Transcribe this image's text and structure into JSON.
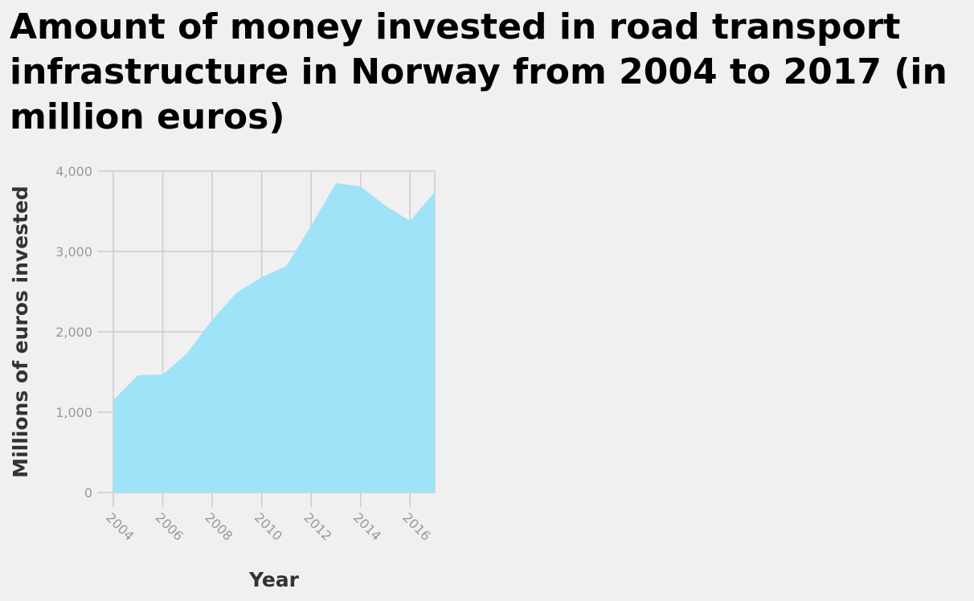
{
  "chart_data": {
    "type": "area",
    "title": "Amount of money invested in road transport infrastructure in Norway from 2004 to 2017 (in million euros)",
    "xlabel": "Year",
    "ylabel": "Millions of euros invested",
    "x": [
      2004,
      2005,
      2006,
      2007,
      2008,
      2009,
      2010,
      2011,
      2012,
      2013,
      2014,
      2015,
      2016,
      2017
    ],
    "values": [
      1150,
      1460,
      1470,
      1740,
      2150,
      2490,
      2680,
      2820,
      3320,
      3850,
      3810,
      3570,
      3380,
      3740
    ],
    "xlim": [
      2004,
      2017
    ],
    "ylim": [
      0,
      4000
    ],
    "x_ticks": [
      2004,
      2006,
      2008,
      2010,
      2012,
      2014,
      2016
    ],
    "y_ticks": [
      0,
      1000,
      2000,
      3000,
      4000
    ],
    "x_tick_labels": [
      "2004",
      "2006",
      "2008",
      "2010",
      "2012",
      "2014",
      "2016"
    ],
    "y_tick_labels": [
      "0",
      "1,000",
      "2,000",
      "3,000",
      "4,000"
    ],
    "fill_color": "#9fe3f8",
    "grid_color": "#cccccc",
    "grid": true,
    "legend": "none"
  }
}
